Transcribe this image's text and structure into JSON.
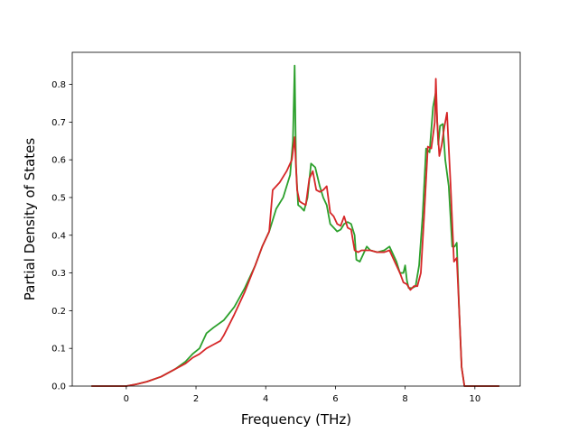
{
  "chart_data": {
    "type": "line",
    "title": "",
    "xlabel": "Frequency (THz)",
    "ylabel": "Partial Density of States",
    "xlim": [
      -1.55,
      11.3
    ],
    "ylim": [
      0,
      0.885
    ],
    "xticks": [
      0,
      2,
      4,
      6,
      8,
      10
    ],
    "yticks": [
      0.0,
      0.1,
      0.2,
      0.3,
      0.4,
      0.5,
      0.6,
      0.7,
      0.8
    ],
    "ytick_labels": [
      "0.0",
      "0.1",
      "0.2",
      "0.3",
      "0.4",
      "0.5",
      "0.6",
      "0.7",
      "0.8"
    ],
    "grid": false,
    "legend": false,
    "series": [
      {
        "color": "#2ca02c",
        "x": [
          -1.0,
          -0.5,
          0.0,
          0.3,
          0.6,
          1.0,
          1.4,
          1.7,
          1.9,
          2.1,
          2.3,
          2.5,
          2.8,
          3.1,
          3.4,
          3.7,
          3.9,
          4.1,
          4.3,
          4.5,
          4.7,
          4.78,
          4.83,
          4.87,
          4.93,
          5.0,
          5.1,
          5.2,
          5.3,
          5.42,
          5.55,
          5.65,
          5.75,
          5.85,
          5.95,
          6.05,
          6.15,
          6.25,
          6.35,
          6.45,
          6.55,
          6.6,
          6.7,
          6.8,
          6.9,
          7.0,
          7.2,
          7.4,
          7.55,
          7.65,
          7.75,
          7.85,
          7.95,
          8.0,
          8.05,
          8.1,
          8.2,
          8.3,
          8.4,
          8.5,
          8.6,
          8.7,
          8.8,
          8.88,
          8.95,
          9.0,
          9.08,
          9.15,
          9.25,
          9.35,
          9.42,
          9.48,
          9.55,
          9.62,
          9.7,
          9.8,
          10.0,
          10.3,
          10.7
        ],
        "y": [
          0.0,
          0.0,
          0.0,
          0.005,
          0.012,
          0.025,
          0.045,
          0.065,
          0.085,
          0.1,
          0.14,
          0.155,
          0.175,
          0.21,
          0.26,
          0.32,
          0.37,
          0.41,
          0.47,
          0.5,
          0.56,
          0.65,
          0.85,
          0.58,
          0.48,
          0.475,
          0.465,
          0.5,
          0.59,
          0.58,
          0.53,
          0.5,
          0.48,
          0.43,
          0.42,
          0.41,
          0.415,
          0.43,
          0.435,
          0.43,
          0.4,
          0.335,
          0.33,
          0.35,
          0.37,
          0.36,
          0.355,
          0.36,
          0.37,
          0.35,
          0.33,
          0.3,
          0.3,
          0.32,
          0.28,
          0.26,
          0.26,
          0.265,
          0.32,
          0.45,
          0.63,
          0.62,
          0.74,
          0.78,
          0.64,
          0.69,
          0.695,
          0.6,
          0.53,
          0.37,
          0.37,
          0.38,
          0.2,
          0.05,
          0.0,
          0.0,
          0.0,
          0.0,
          0.0
        ]
      },
      {
        "color": "#d62728",
        "x": [
          -1.0,
          -0.5,
          0.0,
          0.3,
          0.6,
          1.0,
          1.4,
          1.7,
          1.9,
          2.1,
          2.3,
          2.5,
          2.7,
          2.8,
          3.1,
          3.4,
          3.7,
          3.9,
          4.1,
          4.2,
          4.4,
          4.6,
          4.75,
          4.83,
          4.9,
          4.97,
          5.05,
          5.15,
          5.25,
          5.35,
          5.45,
          5.55,
          5.65,
          5.75,
          5.85,
          5.95,
          6.05,
          6.15,
          6.25,
          6.35,
          6.45,
          6.55,
          6.65,
          6.75,
          6.9,
          7.0,
          7.2,
          7.4,
          7.55,
          7.65,
          7.75,
          7.85,
          7.95,
          8.05,
          8.15,
          8.25,
          8.35,
          8.45,
          8.55,
          8.65,
          8.75,
          8.85,
          8.88,
          8.92,
          8.98,
          9.05,
          9.12,
          9.2,
          9.3,
          9.4,
          9.48,
          9.55,
          9.62,
          9.7,
          9.8,
          10.0,
          10.3,
          10.7
        ],
        "y": [
          0.0,
          0.0,
          0.0,
          0.005,
          0.012,
          0.025,
          0.045,
          0.06,
          0.075,
          0.085,
          0.1,
          0.11,
          0.12,
          0.135,
          0.19,
          0.25,
          0.32,
          0.37,
          0.41,
          0.52,
          0.54,
          0.57,
          0.6,
          0.66,
          0.52,
          0.49,
          0.485,
          0.48,
          0.55,
          0.57,
          0.52,
          0.515,
          0.52,
          0.53,
          0.46,
          0.45,
          0.43,
          0.425,
          0.45,
          0.42,
          0.415,
          0.36,
          0.355,
          0.36,
          0.36,
          0.36,
          0.355,
          0.355,
          0.36,
          0.34,
          0.32,
          0.3,
          0.275,
          0.27,
          0.255,
          0.265,
          0.265,
          0.3,
          0.46,
          0.635,
          0.63,
          0.7,
          0.815,
          0.7,
          0.61,
          0.64,
          0.685,
          0.725,
          0.54,
          0.33,
          0.34,
          0.2,
          0.05,
          0.0,
          0.0,
          0.0,
          0.0,
          0.0
        ]
      }
    ]
  }
}
